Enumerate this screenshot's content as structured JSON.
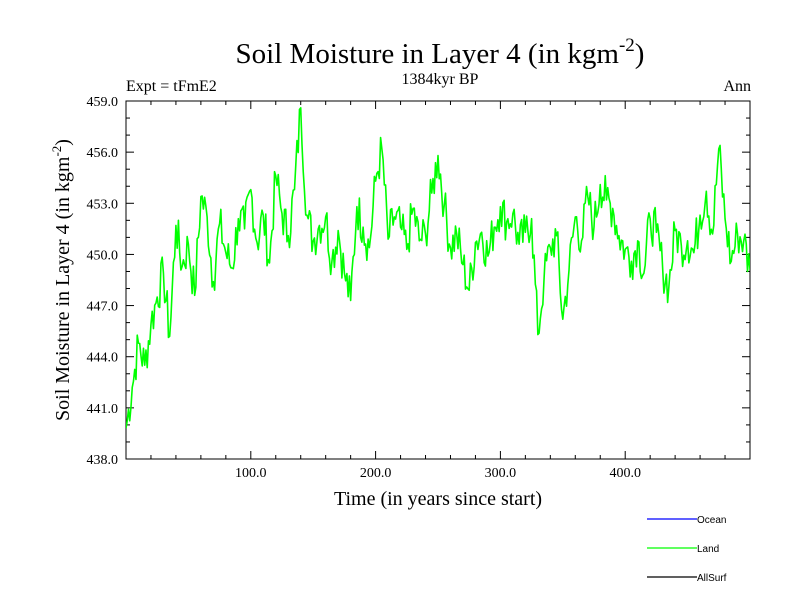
{
  "chart_data": {
    "type": "line",
    "title": "Soil Moisture in Layer 4 (in kgm",
    "title_superscript": "-2",
    "title_suffix": ")",
    "subtitle": "1384kyr BP",
    "left_label": "Expt = tFmE2",
    "right_label": "Ann",
    "xlabel": "Time (in years since start)",
    "ylabel": "Soil Moisture in Layer 4 (in kgm",
    "ylabel_superscript": "-2",
    "ylabel_suffix": ")",
    "xlim": [
      0,
      500
    ],
    "ylim": [
      438.0,
      459.0
    ],
    "x_ticks": [
      100,
      200,
      300,
      400
    ],
    "x_tick_labels": [
      "100.0",
      "200.0",
      "300.0",
      "400.0"
    ],
    "y_ticks": [
      438,
      441,
      444,
      447,
      450,
      453,
      456,
      459
    ],
    "y_tick_labels": [
      "438.0",
      "441.0",
      "444.0",
      "447.0",
      "450.0",
      "453.0",
      "456.0",
      "459.0"
    ],
    "legend": [
      {
        "name": "Ocean",
        "color": "#0000ff"
      },
      {
        "name": "Land",
        "color": "#00ff00"
      },
      {
        "name": "AllSurf",
        "color": "#000000"
      }
    ],
    "legend_position": "bottom-right",
    "series": [
      {
        "name": "Land",
        "color": "#00ff00",
        "x": [
          0,
          5,
          10,
          15,
          20,
          25,
          30,
          35,
          40,
          45,
          50,
          55,
          60,
          65,
          70,
          75,
          80,
          85,
          90,
          95,
          100,
          105,
          110,
          115,
          120,
          125,
          130,
          135,
          140,
          145,
          150,
          155,
          160,
          165,
          170,
          175,
          180,
          185,
          190,
          195,
          200,
          205,
          210,
          215,
          220,
          225,
          230,
          235,
          240,
          245,
          250,
          255,
          260,
          265,
          270,
          275,
          280,
          285,
          290,
          295,
          300,
          305,
          310,
          315,
          320,
          325,
          330,
          335,
          340,
          345,
          350,
          355,
          360,
          365,
          370,
          375,
          380,
          385,
          390,
          395,
          400,
          405,
          410,
          415,
          420,
          425,
          430,
          435,
          440,
          445,
          450,
          455,
          460,
          465,
          470,
          475,
          480,
          485,
          490,
          495,
          500
        ],
        "values": [
          439.8,
          442.2,
          444.8,
          443.5,
          445.9,
          447.5,
          448.9,
          445.2,
          451.7,
          449.3,
          450.6,
          447.6,
          453.4,
          452.2,
          448.4,
          451.8,
          450.1,
          449.2,
          452.1,
          451.5,
          453.8,
          450.7,
          452.3,
          449.5,
          454.6,
          452.4,
          451.1,
          453.8,
          458.6,
          452.3,
          450.8,
          451.7,
          452.2,
          449.6,
          451.4,
          448.9,
          447.3,
          452.8,
          451.6,
          450.4,
          454.3,
          456.2,
          450.9,
          452.2,
          451.6,
          450.3,
          452.7,
          450.8,
          451.2,
          453.6,
          455.8,
          452.9,
          450.4,
          451.2,
          449.4,
          447.9,
          450.7,
          451.3,
          449.9,
          451.6,
          452.8,
          451.9,
          452.4,
          450.6,
          451.3,
          452.1,
          445.3,
          448.6,
          450.4,
          451.1,
          446.2,
          449.1,
          452.2,
          450.8,
          453.4,
          451.6,
          454.1,
          453.2,
          452.7,
          451.1,
          450.3,
          449.6,
          450.8,
          448.9,
          452.1,
          451.3,
          449.2,
          448.1,
          451.4,
          450.5,
          450.8,
          450.1,
          452.3,
          453.7,
          451.2,
          456.2,
          452.1,
          449.6,
          451.2,
          450.8,
          449.1
        ]
      }
    ]
  }
}
